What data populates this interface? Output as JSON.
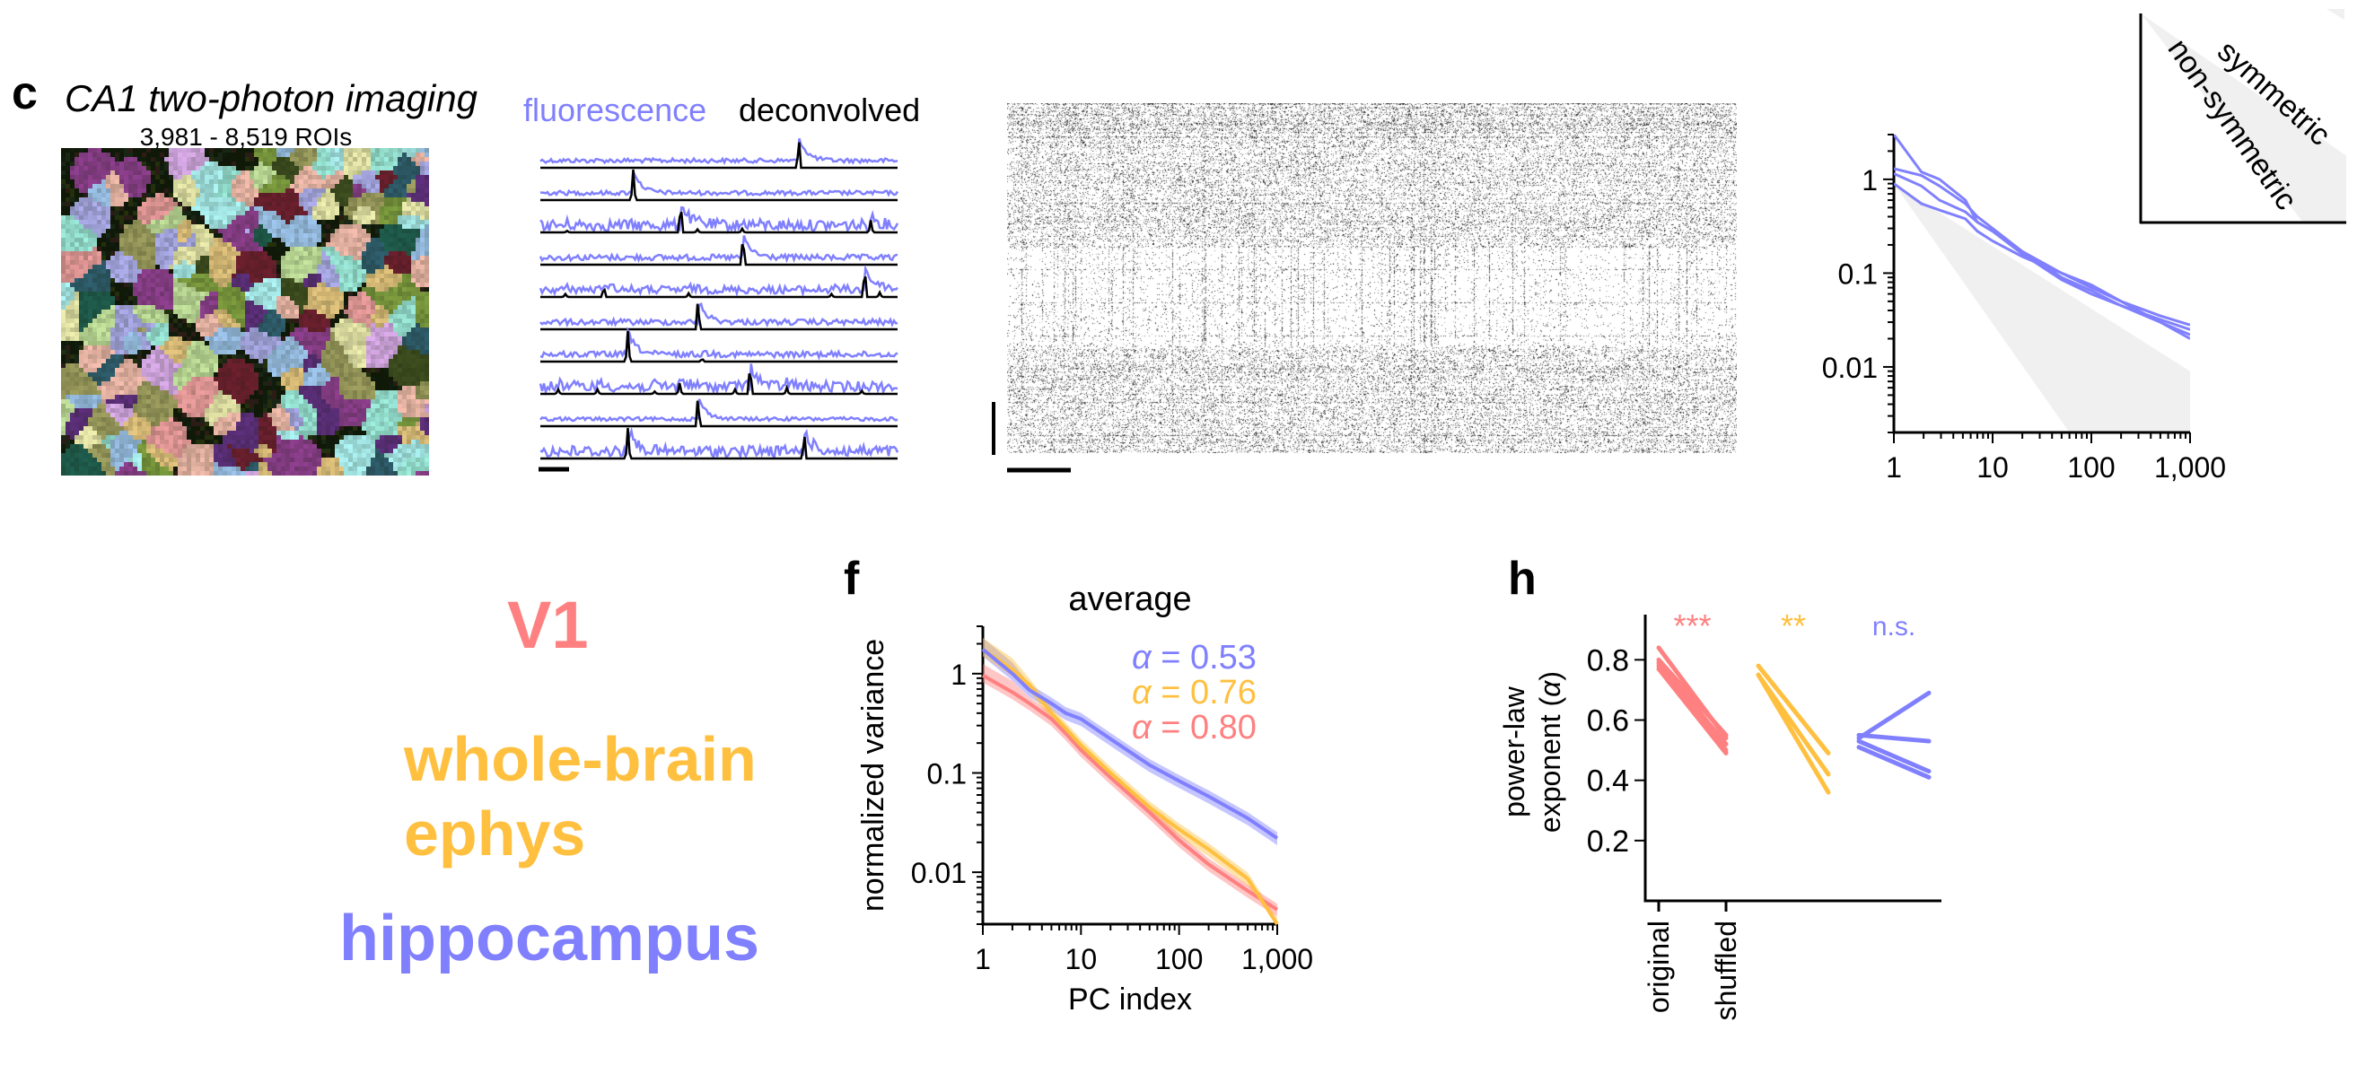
{
  "colors": {
    "v1": "#ff8080",
    "whole_brain": "#ffc040",
    "hippocampus": "#8080ff",
    "shade": "#f0f0f0",
    "axis": "#000000"
  },
  "panel_c": {
    "label": "c",
    "title": "CA1 two-photon imaging",
    "subtitle": "3,981 - 8,519 ROIs",
    "image": "ROI-mask-mosaic"
  },
  "traces": {
    "fluorescence_label": "fluorescence",
    "deconvolved_label": "deconvolved",
    "colors": {
      "fluorescence": "#8080ff",
      "deconvolved": "#000000"
    },
    "rows": [
      {
        "spikes": [
          [
            72.4,
            1
          ]
        ]
      },
      {
        "spikes": [
          [
            26,
            1
          ]
        ]
      },
      {
        "spikes": [
          [
            39.3,
            1
          ],
          [
            92.5,
            0.4
          ],
          [
            56.5,
            0.12
          ],
          [
            7.5,
            0.05
          ],
          [
            44,
            0.1
          ]
        ]
      },
      {
        "spikes": [
          [
            56.7,
            1
          ]
        ]
      },
      {
        "spikes": [
          [
            90.8,
            1
          ],
          [
            17.8,
            0.35
          ],
          [
            95,
            0.15
          ],
          [
            7,
            0.1
          ],
          [
            41.5,
            0.12
          ],
          [
            81.5,
            0.1
          ]
        ]
      },
      {
        "spikes": [
          [
            44.1,
            1
          ]
        ]
      },
      {
        "spikes": [
          [
            24.5,
            1
          ],
          [
            45.3,
            0.1
          ]
        ]
      },
      {
        "spikes": [
          [
            58.7,
            1
          ],
          [
            39,
            0.35
          ],
          [
            69,
            0.2
          ],
          [
            5,
            0.15
          ],
          [
            16,
            0.15
          ],
          [
            54.5,
            0.15
          ],
          [
            32,
            0.08
          ],
          [
            90,
            0.1
          ]
        ]
      },
      {
        "spikes": [
          [
            44.1,
            1
          ]
        ]
      },
      {
        "spikes": [
          [
            24.5,
            1
          ],
          [
            73.9,
            0.85
          ]
        ]
      }
    ]
  },
  "raster": {
    "image": "neural-activity-raster",
    "colormap": "gray_r"
  },
  "inset": {
    "symmetric_label": "symmetric",
    "non_symmetric_label": "non-symmetric"
  },
  "legend_labels": {
    "v1": "V1",
    "whole_brain_line1": "whole-brain",
    "whole_brain_line2": "ephys",
    "hippocampus": "hippocampus"
  },
  "chart_data": [
    {
      "id": "spectra-hippocampus",
      "type": "line",
      "xscale": "log",
      "yscale": "log",
      "xlim": [
        1,
        1000
      ],
      "ylim": [
        0.002,
        3
      ],
      "xticks": [
        {
          "v": 1,
          "label": "1"
        },
        {
          "v": 10,
          "label": "10"
        },
        {
          "v": 100,
          "label": "100"
        },
        {
          "v": 1000,
          "label": "1,000"
        }
      ],
      "yticks": [
        {
          "v": 1,
          "label": "1"
        },
        {
          "v": 0.1,
          "label": "0.1"
        },
        {
          "v": 0.01,
          "label": "0.01"
        }
      ],
      "shaded_band": {
        "x": [
          1,
          1000
        ],
        "upper": [
          0.9,
          0.009
        ],
        "lower": [
          0.9,
          3e-05
        ]
      },
      "x": [
        1,
        1.9,
        2.9,
        5.3,
        7,
        10,
        20,
        50,
        100,
        200,
        500,
        1000
      ],
      "series": [
        {
          "color": "#8080ff",
          "values": [
            3,
            1.2,
            1.0,
            0.6,
            0.35,
            0.28,
            0.17,
            0.1,
            0.07,
            0.05,
            0.03,
            0.022
          ]
        },
        {
          "color": "#8080ff",
          "values": [
            1.3,
            1.1,
            0.85,
            0.55,
            0.4,
            0.3,
            0.17,
            0.09,
            0.065,
            0.045,
            0.032,
            0.025
          ]
        },
        {
          "color": "#8080ff",
          "values": [
            1.15,
            0.85,
            0.6,
            0.45,
            0.35,
            0.28,
            0.16,
            0.085,
            0.06,
            0.045,
            0.03,
            0.02
          ]
        },
        {
          "color": "#8080ff",
          "values": [
            0.9,
            0.55,
            0.47,
            0.38,
            0.28,
            0.22,
            0.15,
            0.1,
            0.075,
            0.05,
            0.035,
            0.028
          ]
        }
      ]
    },
    {
      "id": "panel-f",
      "label": "f",
      "type": "line",
      "title": "average",
      "xlabel": "PC index",
      "ylabel": "normalized variance",
      "xscale": "log",
      "yscale": "log",
      "xlim": [
        1,
        1000
      ],
      "ylim": [
        0.003,
        3
      ],
      "xticks": [
        {
          "v": 1,
          "label": "1"
        },
        {
          "v": 10,
          "label": "10"
        },
        {
          "v": 100,
          "label": "100"
        },
        {
          "v": 1000,
          "label": "1,000"
        }
      ],
      "yticks": [
        {
          "v": 1,
          "label": "1"
        },
        {
          "v": 0.1,
          "label": "0.1"
        },
        {
          "v": 0.01,
          "label": "0.01"
        }
      ],
      "x": [
        1,
        2,
        3,
        5,
        7,
        10,
        20,
        50,
        100,
        200,
        500,
        1000
      ],
      "error_band_fraction": 0.15,
      "series": [
        {
          "color": "#8080ff",
          "symbol": "α",
          "label": " = 0.53",
          "values": [
            1.76,
            1.0,
            0.68,
            0.5,
            0.4,
            0.35,
            0.22,
            0.12,
            0.083,
            0.058,
            0.035,
            0.022
          ]
        },
        {
          "color": "#ffc040",
          "symbol": "α",
          "label": " = 0.76",
          "values": [
            1.76,
            1.1,
            0.77,
            0.4,
            0.28,
            0.19,
            0.1,
            0.045,
            0.027,
            0.017,
            0.0086,
            0.003
          ]
        },
        {
          "color": "#ff8080",
          "symbol": "α",
          "label": " = 0.80",
          "values": [
            0.96,
            0.65,
            0.5,
            0.35,
            0.25,
            0.17,
            0.09,
            0.04,
            0.021,
            0.012,
            0.0065,
            0.0042
          ]
        }
      ]
    },
    {
      "id": "panel-h",
      "label": "h",
      "type": "line",
      "ylabel_line1": "power-law",
      "ylabel_line2": "exponent (",
      "ylabel_symbol": "α",
      "ylabel_end": ")",
      "ylim": [
        0,
        0.95
      ],
      "yticks": [
        {
          "v": 0.8,
          "label": "0.8"
        },
        {
          "v": 0.6,
          "label": "0.6"
        },
        {
          "v": 0.4,
          "label": "0.4"
        },
        {
          "v": 0.2,
          "label": "0.2"
        }
      ],
      "categories": [
        "original",
        "shuffled"
      ],
      "groups": [
        {
          "color": "#ff8080",
          "significance": "***",
          "pairs": [
            [
              0.84,
              0.54
            ],
            [
              0.8,
              0.55
            ],
            [
              0.79,
              0.52
            ],
            [
              0.78,
              0.5
            ],
            [
              0.77,
              0.49
            ]
          ]
        },
        {
          "color": "#ffc040",
          "significance": "**",
          "pairs": [
            [
              0.78,
              0.49
            ],
            [
              0.75,
              0.42
            ],
            [
              0.75,
              0.36
            ]
          ]
        },
        {
          "color": "#8080ff",
          "significance": "n.s.",
          "pairs": [
            [
              0.54,
              0.69
            ],
            [
              0.55,
              0.53
            ],
            [
              0.53,
              0.43
            ],
            [
              0.51,
              0.41
            ]
          ]
        }
      ]
    }
  ]
}
